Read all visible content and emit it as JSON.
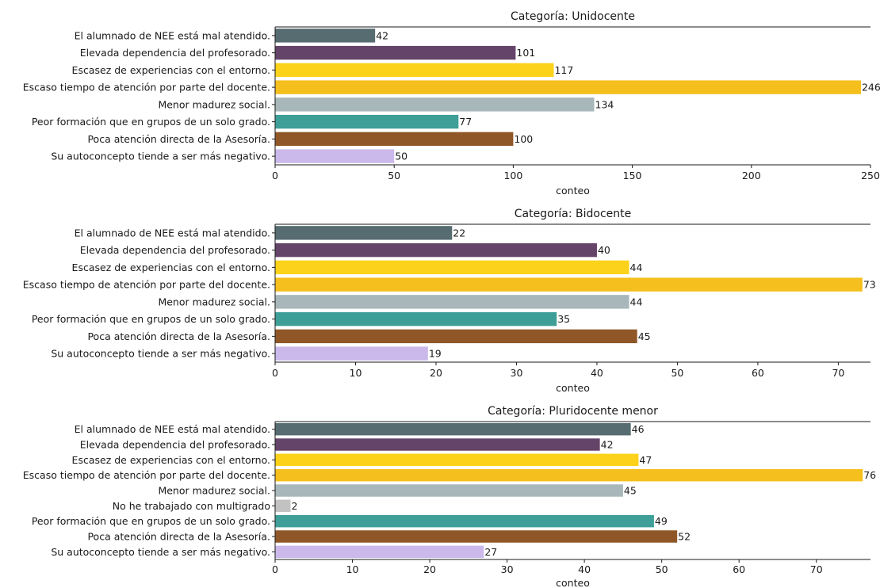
{
  "colors": {
    "El alumnado de NEE está mal atendido.": "#566c70",
    "Elevada dependencia del profesorado.": "#654469",
    "Escasez de experiencias con el entorno.": "#fcd21a",
    "Escaso tiempo de atención por parte del docente.": "#f5c01e",
    "Menor madurez social.": "#a7b7ba",
    "No he trabajado con multigrado": "#c2c2c2",
    "Peor formación que en grupos de un solo grado.": "#3d9f97",
    "Poca atención directa de la Asesoría.": "#8f5727",
    "Su autoconcepto tiende a ser más negativo.": "#cbb9eb"
  },
  "chart_data": [
    {
      "type": "bar",
      "orientation": "horizontal",
      "title": "Categoría: Unidocente",
      "xlabel": "conteo",
      "categories": [
        "El alumnado de NEE está mal atendido.",
        "Elevada dependencia del profesorado.",
        "Escasez de experiencias con el entorno.",
        "Escaso tiempo de atención por parte del docente.",
        "Menor madurez social.",
        "Peor formación que en grupos de un solo grado.",
        "Poca atención directa de la Asesoría.",
        "Su autoconcepto tiende a ser más negativo."
      ],
      "values": [
        42,
        101,
        117,
        246,
        134,
        77,
        100,
        50
      ],
      "xticks": [
        0,
        50,
        100,
        150,
        200,
        250
      ],
      "xlim": [
        0,
        250
      ]
    },
    {
      "type": "bar",
      "orientation": "horizontal",
      "title": "Categoría: Bidocente",
      "xlabel": "conteo",
      "categories": [
        "El alumnado de NEE está mal atendido.",
        "Elevada dependencia del profesorado.",
        "Escasez de experiencias con el entorno.",
        "Escaso tiempo de atención por parte del docente.",
        "Menor madurez social.",
        "Peor formación que en grupos de un solo grado.",
        "Poca atención directa de la Asesoría.",
        "Su autoconcepto tiende a ser más negativo."
      ],
      "values": [
        22,
        40,
        44,
        73,
        44,
        35,
        45,
        19
      ],
      "xticks": [
        0,
        10,
        20,
        30,
        40,
        50,
        60,
        70
      ],
      "xlim": [
        0,
        74
      ]
    },
    {
      "type": "bar",
      "orientation": "horizontal",
      "title": "Categoría: Pluridocente menor",
      "xlabel": "conteo",
      "categories": [
        "El alumnado de NEE está mal atendido.",
        "Elevada dependencia del profesorado.",
        "Escasez de experiencias con el entorno.",
        "Escaso tiempo de atención por parte del docente.",
        "Menor madurez social.",
        "No he trabajado con multigrado",
        "Peor formación que en grupos de un solo grado.",
        "Poca atención directa de la Asesoría.",
        "Su autoconcepto tiende a ser más negativo."
      ],
      "values": [
        46,
        42,
        47,
        76,
        45,
        2,
        49,
        52,
        27
      ],
      "xticks": [
        0,
        10,
        20,
        30,
        40,
        50,
        60,
        70
      ],
      "xlim": [
        0,
        77
      ]
    }
  ]
}
